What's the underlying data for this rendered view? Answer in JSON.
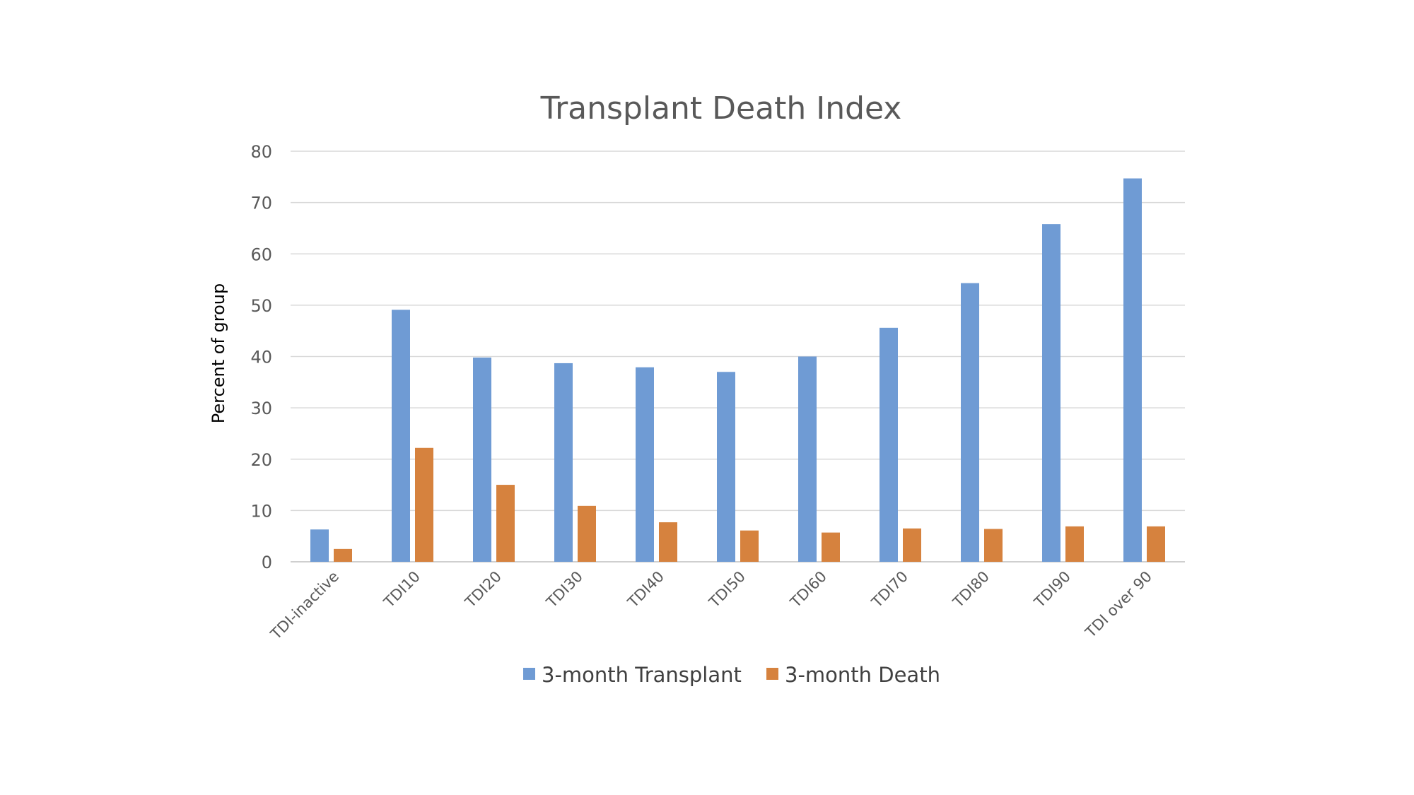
{
  "chart_data": {
    "type": "bar",
    "title": "Transplant Death Index",
    "xlabel": "",
    "ylabel": "Percent of group",
    "ylim": [
      0,
      80
    ],
    "yticks": [
      0,
      10,
      20,
      30,
      40,
      50,
      60,
      70,
      80
    ],
    "grid": true,
    "legend_position": "bottom",
    "categories": [
      "TDI-inactive",
      "TDI10",
      "TDI20",
      "TDI30",
      "TDI40",
      "TDI50",
      "TDI60",
      "TDI70",
      "TDI80",
      "TDI90",
      "TDI over 90"
    ],
    "series": [
      {
        "name": "3-month Transplant",
        "color": "#6f9bd4",
        "values": [
          6.3,
          49.1,
          39.8,
          38.7,
          37.9,
          37.0,
          40.0,
          45.6,
          54.3,
          65.8,
          74.7
        ]
      },
      {
        "name": "3-month Death",
        "color": "#d6823e",
        "values": [
          2.5,
          22.2,
          15.0,
          10.9,
          7.7,
          6.1,
          5.7,
          6.5,
          6.4,
          6.9,
          6.9
        ]
      }
    ]
  }
}
